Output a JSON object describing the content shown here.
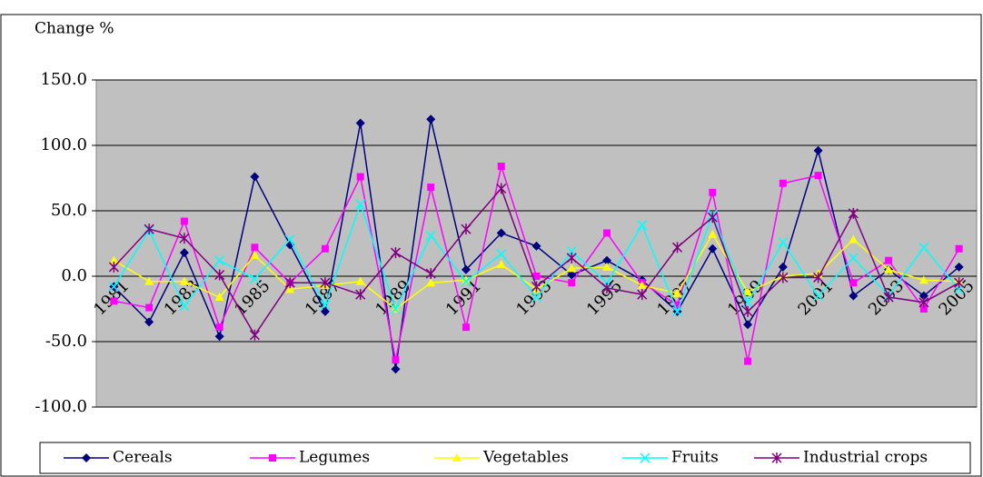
{
  "chart_data": {
    "type": "line",
    "y_label": "Change %",
    "categories": [
      "1981",
      null,
      "1983",
      null,
      "1985",
      null,
      "1987",
      null,
      "1989",
      null,
      "1991",
      null,
      "1993",
      null,
      "1995",
      null,
      "1997",
      null,
      "1999",
      null,
      "2001",
      null,
      "2003",
      null,
      "2005"
    ],
    "ylim": [
      -100,
      150
    ],
    "yticks": [
      {
        "value": -100,
        "label": "-100.0"
      },
      {
        "value": -50,
        "label": "-50.0"
      },
      {
        "value": 0,
        "label": "0.0"
      },
      {
        "value": 50,
        "label": "50.0"
      },
      {
        "value": 100,
        "label": "100.0"
      },
      {
        "value": 150,
        "label": "150.0"
      }
    ],
    "grid": true,
    "legend": "bottom",
    "plot_background": "#c0c0c0",
    "series": [
      {
        "name": "Cereals",
        "color": "#000080",
        "marker": "diamond",
        "values": [
          -8,
          -35,
          18,
          -46,
          76,
          24,
          -27,
          117,
          -71,
          120,
          5,
          33,
          23,
          1,
          12,
          -3,
          -27,
          21,
          -37,
          7,
          96,
          -15,
          5,
          -15,
          7
        ]
      },
      {
        "name": "Legumes",
        "color": "#ff00ff",
        "marker": "square",
        "values": [
          -19,
          -24,
          42,
          -39,
          22,
          -5,
          21,
          76,
          -64,
          68,
          -39,
          84,
          0,
          -5,
          33,
          -5,
          -22,
          64,
          -65,
          71,
          77,
          -5,
          12,
          -25,
          21
        ]
      },
      {
        "name": "Vegetables",
        "color": "#ffff00",
        "marker": "triangle",
        "values": [
          12,
          -4,
          -4,
          -16,
          16,
          -10,
          -7,
          -4,
          -25,
          -5,
          -3,
          9,
          -10,
          6,
          7,
          -7,
          -13,
          32,
          -12,
          0,
          2,
          28,
          5,
          -3,
          -4
        ]
      },
      {
        "name": "Fruits",
        "color": "#00ffff",
        "marker": "x",
        "values": [
          -8,
          35,
          -23,
          12,
          -2,
          28,
          -22,
          55,
          -25,
          31,
          -4,
          17,
          -16,
          19,
          -5,
          39,
          -27,
          47,
          -20,
          26,
          -15,
          14,
          -15,
          22,
          -10
        ]
      },
      {
        "name": "Industrial crops",
        "color": "#800080",
        "marker": "star",
        "values": [
          7,
          36,
          29,
          1,
          -45,
          -5,
          -5,
          -14,
          18,
          2,
          36,
          67,
          -8,
          14,
          -9,
          -14,
          22,
          45,
          -27,
          -1,
          -1,
          48,
          -16,
          -20,
          -5
        ]
      }
    ]
  }
}
